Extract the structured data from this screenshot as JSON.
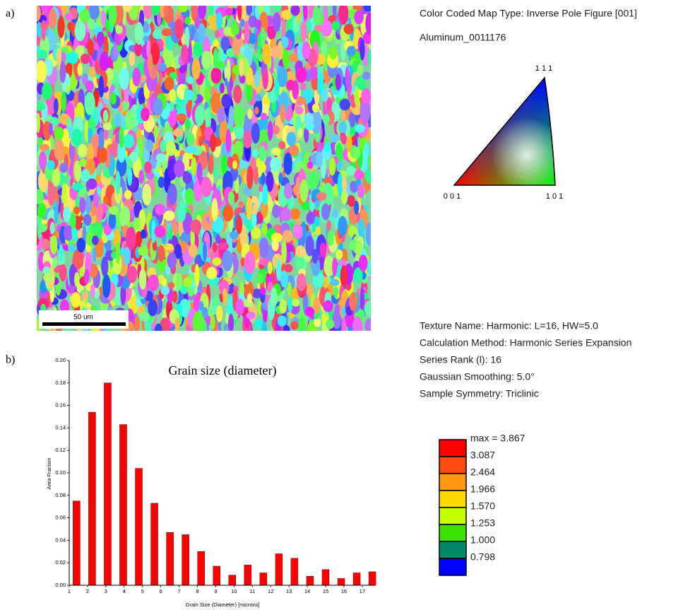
{
  "panels": {
    "a": "a)",
    "b": "b)"
  },
  "map": {
    "scale_bar": "50 um",
    "map_type": "Color Coded Map Type: Inverse Pole Figure [001]",
    "phase": "Aluminum_0011176",
    "ipf_labels": {
      "top": "1 1 1",
      "left": "0 0 1",
      "right": "1 0 1"
    }
  },
  "texture": {
    "lines": [
      "Texture Name: Harmonic: L=16, HW=5.0",
      "Calculation Method: Harmonic Series Expansion",
      "Series Rank (l): 16",
      "Gaussian Smoothing: 5.0°",
      "Sample Symmetry: Triclinic"
    ]
  },
  "legend": {
    "entries": [
      {
        "label": "max = 3.867",
        "color": "#ff0000"
      },
      {
        "label": "3.087",
        "color": "#ff4a10"
      },
      {
        "label": "2.464",
        "color": "#ff9a10"
      },
      {
        "label": "1.966",
        "color": "#ffd800"
      },
      {
        "label": "1.570",
        "color": "#c8ff00"
      },
      {
        "label": "1.253",
        "color": "#3ee000"
      },
      {
        "label": "1.000",
        "color": "#008a66"
      },
      {
        "label": "0.798",
        "color": "#0000ff"
      }
    ]
  },
  "chart_data": {
    "type": "bar",
    "title": "Grain size (diameter)",
    "x_label": "Grain Size (Diameter) [microns]",
    "y_label": "Area Fraction",
    "color": "#ff0000",
    "x": [
      1.4,
      2.25,
      3.1,
      3.95,
      4.8,
      5.65,
      6.5,
      7.35,
      8.2,
      9.05,
      9.9,
      10.75,
      11.6,
      12.45,
      13.3,
      14.15,
      15.0,
      15.85,
      16.7,
      17.55
    ],
    "values": [
      0.075,
      0.154,
      0.18,
      0.143,
      0.104,
      0.073,
      0.047,
      0.045,
      0.03,
      0.017,
      0.009,
      0.018,
      0.011,
      0.028,
      0.024,
      0.008,
      0.014,
      0.006,
      0.011,
      0.012
    ],
    "xlim": [
      1,
      17.7
    ],
    "ylim": [
      0,
      0.2
    ],
    "xticks": [
      1,
      2,
      3,
      4,
      5,
      6,
      7,
      8,
      9,
      10,
      11,
      12,
      13,
      14,
      15,
      16,
      17
    ],
    "yticks": [
      {
        "value": 0,
        "label": "0.00"
      },
      {
        "value": 0.02,
        "label": "0.02"
      },
      {
        "value": 0.04,
        "label": "0.04"
      },
      {
        "value": 0.06,
        "label": "0.06"
      },
      {
        "value": 0.08,
        "label": "0.08"
      },
      {
        "value": 0.1,
        "label": "0.10"
      },
      {
        "value": 0.12,
        "label": "0.12"
      },
      {
        "value": 0.14,
        "label": "0.14"
      },
      {
        "value": 0.16,
        "label": "0.16"
      },
      {
        "value": 0.18,
        "label": "0.18"
      },
      {
        "value": 0.2,
        "label": "0.20"
      }
    ]
  }
}
